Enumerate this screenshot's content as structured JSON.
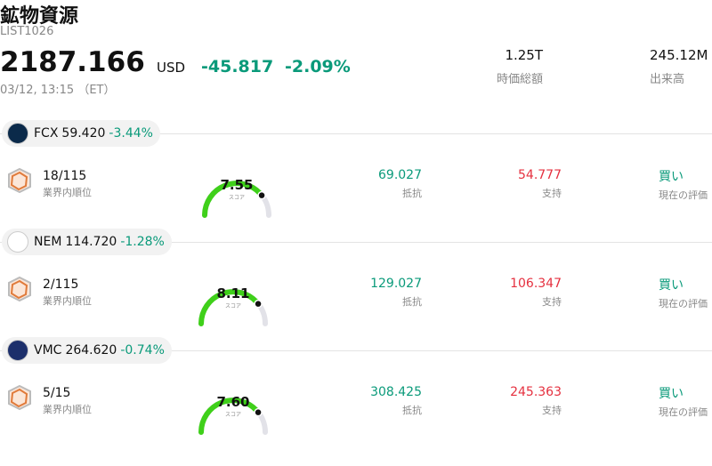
{
  "header": {
    "title": "鉱物資源",
    "code": "LIST1026",
    "price": "2187.166",
    "currency": "USD",
    "change": "-45.817",
    "change_pct": "-2.09%",
    "timestamp": "03/12, 13:15 （ET）",
    "stats": [
      {
        "value": "1.25T",
        "label": "時価総額"
      },
      {
        "value": "245.12M",
        "label": "出来高"
      }
    ]
  },
  "stocks": [
    {
      "ticker": "FCX",
      "price": "59.420",
      "change_pct": "-3.44%",
      "rank": "18/115",
      "rank_label": "業界内順位",
      "score": "7.55",
      "score_label": "スコア",
      "resistance": "69.027",
      "resistance_label": "抵抗",
      "support": "54.777",
      "support_label": "支持",
      "rating": "買い",
      "rating_label": "現在の評価"
    },
    {
      "ticker": "NEM",
      "price": "114.720",
      "change_pct": "-1.28%",
      "rank": "2/115",
      "rank_label": "業界内順位",
      "score": "8.11",
      "score_label": "スコア",
      "resistance": "129.027",
      "resistance_label": "抵抗",
      "support": "106.347",
      "support_label": "支持",
      "rating": "買い",
      "rating_label": "現在の評価"
    },
    {
      "ticker": "VMC",
      "price": "264.620",
      "change_pct": "-0.74%",
      "rank": "5/15",
      "rank_label": "業界内順位",
      "score": "7.60",
      "score_label": "スコア",
      "resistance": "308.425",
      "resistance_label": "抵抗",
      "support": "245.363",
      "support_label": "支持",
      "rating": "買い",
      "rating_label": "現在の評価"
    }
  ]
}
